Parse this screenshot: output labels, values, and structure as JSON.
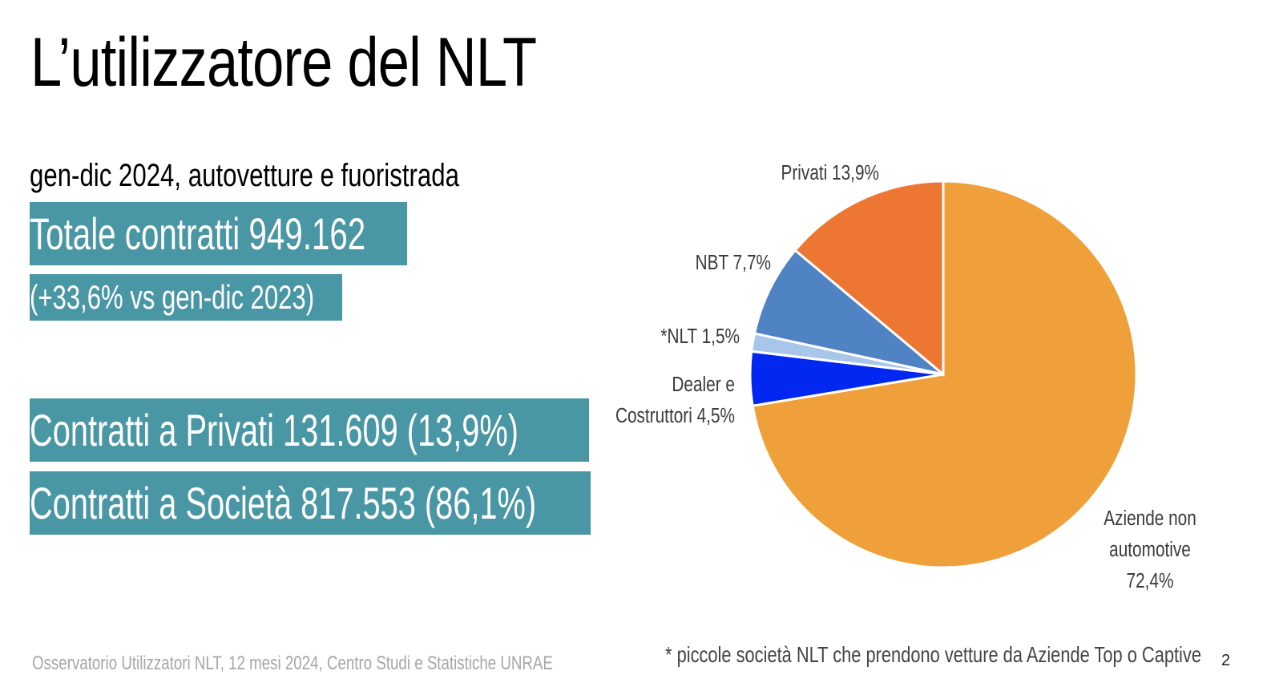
{
  "title": "L’utilizzatore del NLT",
  "subtitle": "gen-dic 2024, autovetture e fuoristrada",
  "highlights": {
    "total": "Totale contratti 949.162",
    "delta": "(+33,6% vs  gen-dic 2023)",
    "privati": "Contratti a Privati  131.609 (13,9%)",
    "societa": "Contratti a Società 817.553 (86,1%)"
  },
  "footnote": "* piccole società NLT che prendono vetture da Aziende Top o Captive",
  "source": "Osservatorio Utilizzatori NLT, 12 mesi 2024, Centro Studi e Statistiche UNRAE",
  "page_number": "2",
  "chart_data": {
    "type": "pie",
    "title": "",
    "slices": [
      {
        "label_lines": [
          "Aziende non",
          "automotive",
          "72,4%"
        ],
        "value": 72.4,
        "color": "#f0a03a"
      },
      {
        "label_lines": [
          "Dealer e",
          "Costruttori 4,5%"
        ],
        "value": 4.5,
        "color": "#0227f0"
      },
      {
        "label_lines": [
          "*NLT 1,5%"
        ],
        "value": 1.5,
        "color": "#a8c6ea"
      },
      {
        "label_lines": [
          "NBT 7,7%"
        ],
        "value": 7.7,
        "color": "#5083c3"
      },
      {
        "label_lines": [
          "Privati 13,9%"
        ],
        "value": 13.9,
        "color": "#ed7633"
      }
    ]
  }
}
